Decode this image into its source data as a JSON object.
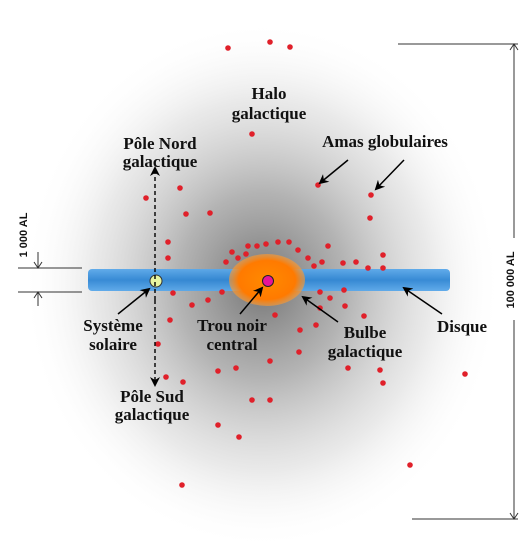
{
  "labels": {
    "halo": [
      "Halo",
      "galactique"
    ],
    "amas": "Amas globulaires",
    "pole_nord": [
      "Pôle Nord",
      "galactique"
    ],
    "pole_sud": [
      "Pôle Sud",
      "galactique"
    ],
    "systeme": [
      "Système",
      "solaire"
    ],
    "trou_noir": [
      "Trou noir",
      "central"
    ],
    "bulbe": [
      "Bulbe",
      "galactique"
    ],
    "disque": "Disque"
  },
  "scale": {
    "thickness": "1 000 AL",
    "diameter": "100 000 AL"
  },
  "colors": {
    "halo": "#8c8c8c",
    "disk": "#2e86d6",
    "bulge": "#ff7f00",
    "black_hole": "#e6149a",
    "sun": "#e8f5a0",
    "cluster": "#e0202a"
  }
}
